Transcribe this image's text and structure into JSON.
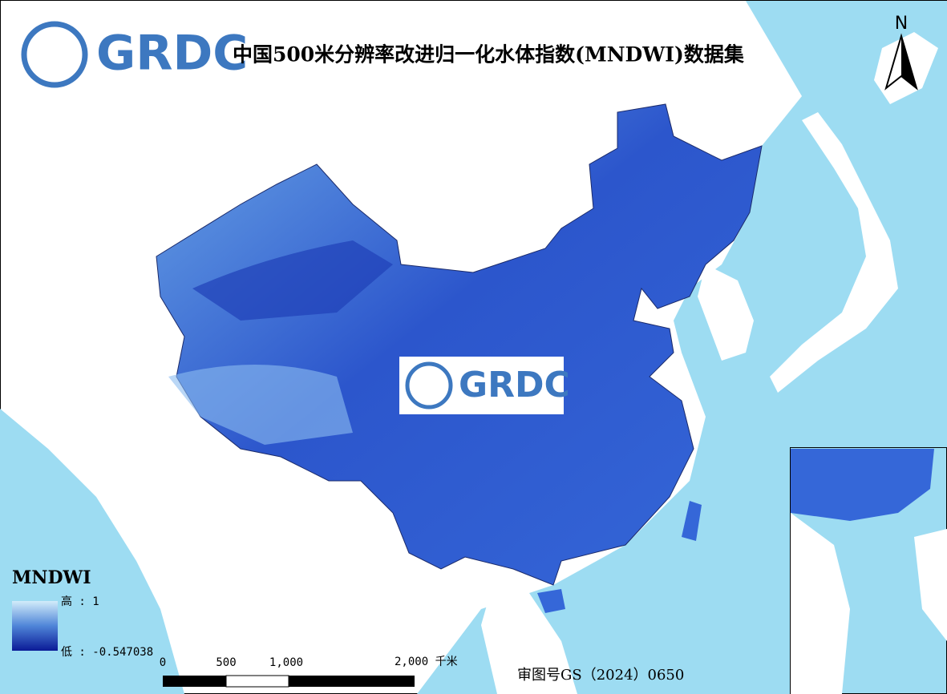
{
  "title": "中国500米分辨率改进归一化水体指数(MNDWI)数据集",
  "logo": {
    "text": "GRDC"
  },
  "watermark": {
    "text": "GRDC"
  },
  "north_arrow": "N",
  "legend": {
    "title": "MNDWI",
    "high": "高 : 1",
    "low": "低 : -0.547038"
  },
  "scale_bar": {
    "labels": [
      "0",
      "500",
      "1,000",
      "2,000 千米"
    ]
  },
  "approval": "审图号GS（2024）0650"
}
